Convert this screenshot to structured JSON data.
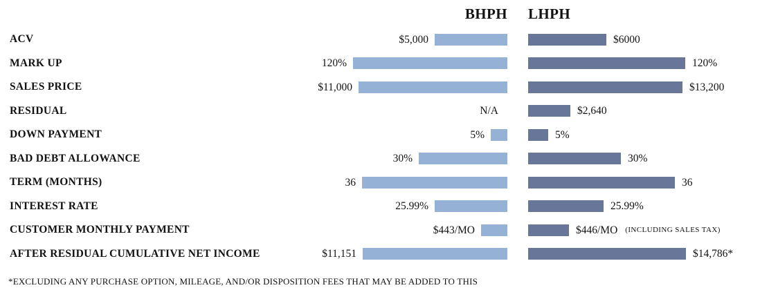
{
  "columns": {
    "bhph": {
      "label": "BHPH"
    },
    "lhph": {
      "label": "LHPH"
    }
  },
  "colors": {
    "bhph_bar": "#95b2d6",
    "lhph_bar": "#68769a",
    "text": "#121212",
    "background": "#ffffff"
  },
  "chart_data": {
    "type": "bar",
    "orientation": "horizontal",
    "title": "",
    "legend_position": "top",
    "grid": false,
    "categories": [
      "ACV",
      "MARK UP",
      "SALES PRICE",
      "RESIDUAL",
      "DOWN PAYMENT",
      "BAD DEBT ALLOWANCE",
      "TERM (MONTHS)",
      "INTEREST RATE",
      "CUSTOMER MONTHLY PAYMENT",
      "AFTER RESIDUAL CUMULATIVE NET INCOME"
    ],
    "series": [
      {
        "name": "BHPH",
        "values": [
          5000,
          120,
          11000,
          null,
          5,
          30,
          36,
          25.99,
          443,
          11151
        ],
        "value_labels": [
          "$5,000",
          "120%",
          "$11,000",
          "N/A",
          "5%",
          "30%",
          "36",
          "25.99%",
          "$443/MO",
          "$11,151"
        ]
      },
      {
        "name": "LHPH",
        "values": [
          6000,
          120,
          13200,
          2640,
          5,
          30,
          36,
          25.99,
          446,
          14786
        ],
        "value_labels": [
          "$6000",
          "120%",
          "$13,200",
          "$2,640",
          "5%",
          "30%",
          "36",
          "25.99%",
          "$446/MO (INCLUDING SALES TAX)",
          "$14,786*"
        ]
      }
    ]
  },
  "rows": [
    {
      "label": "ACV",
      "bhph": {
        "value": "$5,000",
        "bar": 105
      },
      "lhph": {
        "value": "$6000",
        "bar": 113,
        "suffix": ""
      }
    },
    {
      "label": "MARK UP",
      "bhph": {
        "value": "120%",
        "bar": 223
      },
      "lhph": {
        "value": "120%",
        "bar": 227,
        "suffix": ""
      }
    },
    {
      "label": "SALES PRICE",
      "bhph": {
        "value": "$11,000",
        "bar": 215
      },
      "lhph": {
        "value": "$13,200",
        "bar": 223,
        "suffix": ""
      }
    },
    {
      "label": "RESIDUAL",
      "bhph": {
        "value": "N/A",
        "bar": 0
      },
      "lhph": {
        "value": "$2,640",
        "bar": 61,
        "suffix": ""
      }
    },
    {
      "label": "DOWN PAYMENT",
      "bhph": {
        "value": "5%",
        "bar": 24
      },
      "lhph": {
        "value": "5%",
        "bar": 29,
        "suffix": ""
      }
    },
    {
      "label": "BAD DEBT ALLOWANCE",
      "bhph": {
        "value": "30%",
        "bar": 128
      },
      "lhph": {
        "value": "30%",
        "bar": 134,
        "suffix": ""
      }
    },
    {
      "label": "TERM (MONTHS)",
      "bhph": {
        "value": "36",
        "bar": 210
      },
      "lhph": {
        "value": "36",
        "bar": 212,
        "suffix": ""
      }
    },
    {
      "label": "INTEREST RATE",
      "bhph": {
        "value": "25.99%",
        "bar": 105
      },
      "lhph": {
        "value": "25.99%",
        "bar": 109,
        "suffix": ""
      }
    },
    {
      "label": "CUSTOMER MONTHLY PAYMENT",
      "bhph": {
        "value": "$443/MO",
        "bar": 38
      },
      "lhph": {
        "value": "$446/MO",
        "bar": 59,
        "suffix": "(INCLUDING SALES TAX)"
      }
    },
    {
      "label": "AFTER RESIDUAL CUMULATIVE NET INCOME",
      "bhph": {
        "value": "$11,151",
        "bar": 209
      },
      "lhph": {
        "value": "$14,786*",
        "bar": 228,
        "suffix": ""
      }
    }
  ],
  "footnote": "*EXCLUDING ANY PURCHASE OPTION, MILEAGE, AND/OR DISPOSITION FEES THAT MAY BE ADDED TO THIS"
}
